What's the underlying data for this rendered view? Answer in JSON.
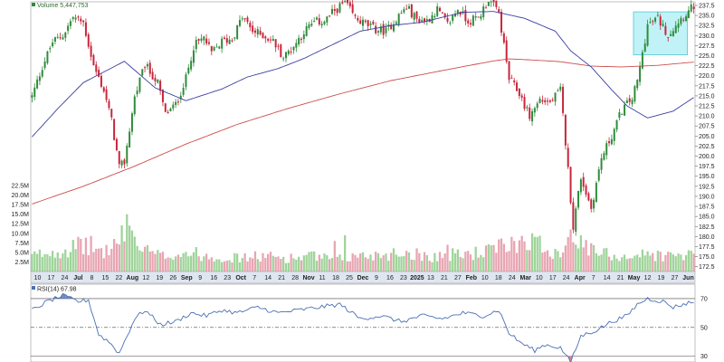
{
  "chart_data": [
    {
      "type": "candlestick",
      "header": {
        "volume_label": "Volume 5,447,753"
      },
      "y_axis": {
        "side": "right",
        "ticks": [
          "237.5",
          "235.0",
          "232.5",
          "230.0",
          "227.5",
          "225.0",
          "222.5",
          "220.0",
          "217.5",
          "215.0",
          "212.5",
          "210.0",
          "207.5",
          "205.0",
          "202.5",
          "200.0",
          "197.5",
          "195.0",
          "192.5",
          "190.0",
          "187.5",
          "185.0",
          "182.5",
          "180.0",
          "177.5",
          "175.0",
          "172.5"
        ],
        "range": [
          171.3,
          238.4
        ]
      },
      "volume_axis": {
        "ticks": [
          "22.5M",
          "20.0M",
          "17.5M",
          "15.0M",
          "12.5M",
          "10.0M",
          "7.5M",
          "5.0M",
          "2.5M"
        ],
        "range": [
          0,
          22.5
        ]
      },
      "x_axis": {
        "labels": [
          {
            "text": "10",
            "bold": false
          },
          {
            "text": "17",
            "bold": false
          },
          {
            "text": "24",
            "bold": false
          },
          {
            "text": "Jul",
            "bold": true
          },
          {
            "text": "8",
            "bold": false
          },
          {
            "text": "15",
            "bold": false
          },
          {
            "text": "22",
            "bold": false
          },
          {
            "text": "Aug",
            "bold": true
          },
          {
            "text": "12",
            "bold": false
          },
          {
            "text": "19",
            "bold": false
          },
          {
            "text": "26",
            "bold": false
          },
          {
            "text": "Sep",
            "bold": true
          },
          {
            "text": "9",
            "bold": false
          },
          {
            "text": "16",
            "bold": false
          },
          {
            "text": "23",
            "bold": false
          },
          {
            "text": "Oct",
            "bold": true
          },
          {
            "text": "7",
            "bold": false
          },
          {
            "text": "14",
            "bold": false
          },
          {
            "text": "21",
            "bold": false
          },
          {
            "text": "28",
            "bold": false
          },
          {
            "text": "Nov",
            "bold": true
          },
          {
            "text": "11",
            "bold": false
          },
          {
            "text": "18",
            "bold": false
          },
          {
            "text": "25",
            "bold": false
          },
          {
            "text": "Dec",
            "bold": true
          },
          {
            "text": "9",
            "bold": false
          },
          {
            "text": "16",
            "bold": false
          },
          {
            "text": "23",
            "bold": false
          },
          {
            "text": "2025",
            "bold": true
          },
          {
            "text": "13",
            "bold": false
          },
          {
            "text": "21",
            "bold": false
          },
          {
            "text": "27",
            "bold": false
          },
          {
            "text": "Feb",
            "bold": true
          },
          {
            "text": "10",
            "bold": false
          },
          {
            "text": "18",
            "bold": false
          },
          {
            "text": "24",
            "bold": false
          },
          {
            "text": "Mar",
            "bold": true
          },
          {
            "text": "10",
            "bold": false
          },
          {
            "text": "17",
            "bold": false
          },
          {
            "text": "24",
            "bold": false
          },
          {
            "text": "Apr",
            "bold": true
          },
          {
            "text": "7",
            "bold": false
          },
          {
            "text": "14",
            "bold": false
          },
          {
            "text": "21",
            "bold": false
          },
          {
            "text": "May",
            "bold": true
          },
          {
            "text": "12",
            "bold": false
          },
          {
            "text": "19",
            "bold": false
          },
          {
            "text": "27",
            "bold": false
          },
          {
            "text": "Jun",
            "bold": true
          }
        ]
      },
      "price_anchors": [
        [
          0,
          214.8
        ],
        [
          4,
          222.3
        ],
        [
          8,
          228.4
        ],
        [
          12,
          230.1
        ],
        [
          16,
          234.6
        ],
        [
          20,
          233.2
        ],
        [
          24,
          222.4
        ],
        [
          28,
          216.4
        ],
        [
          31,
          208.8
        ],
        [
          34,
          197.1
        ],
        [
          36,
          198.5
        ],
        [
          40,
          214.7
        ],
        [
          44,
          222.7
        ],
        [
          49,
          218.2
        ],
        [
          52,
          210.4
        ],
        [
          56,
          212.8
        ],
        [
          60,
          219.3
        ],
        [
          63,
          227.4
        ],
        [
          67,
          229.4
        ],
        [
          70,
          225.6
        ],
        [
          74,
          228.5
        ],
        [
          78,
          229.2
        ],
        [
          82,
          234.6
        ],
        [
          86,
          231.1
        ],
        [
          90,
          230.1
        ],
        [
          94,
          228.6
        ],
        [
          98,
          224.6
        ],
        [
          102,
          227.4
        ],
        [
          106,
          231.0
        ],
        [
          110,
          233.3
        ],
        [
          114,
          233.6
        ],
        [
          118,
          236.2
        ],
        [
          122,
          238.2
        ],
        [
          126,
          234.3
        ],
        [
          130,
          232.8
        ],
        [
          134,
          231.5
        ],
        [
          138,
          231.1
        ],
        [
          142,
          234.2
        ],
        [
          146,
          237.1
        ],
        [
          150,
          234.0
        ],
        [
          154,
          233.7
        ],
        [
          158,
          236.5
        ],
        [
          162,
          232.7
        ],
        [
          166,
          236.6
        ],
        [
          170,
          233.6
        ],
        [
          174,
          234.4
        ],
        [
          178,
          239.0
        ],
        [
          182,
          235.6
        ],
        [
          186,
          219.2
        ],
        [
          190,
          215.6
        ],
        [
          194,
          209.9
        ],
        [
          198,
          214.1
        ],
        [
          202,
          213.3
        ],
        [
          206,
          216.4
        ],
        [
          208,
          203.5
        ],
        [
          211,
          182.5
        ],
        [
          214,
          194.8
        ],
        [
          218,
          187.0
        ],
        [
          222,
          199.5
        ],
        [
          226,
          205.1
        ],
        [
          230,
          211.5
        ],
        [
          234,
          214.4
        ],
        [
          236,
          218.6
        ],
        [
          240,
          232.6
        ],
        [
          244,
          234.3
        ],
        [
          248,
          230.1
        ],
        [
          252,
          233.7
        ],
        [
          256,
          236.0
        ],
        [
          258,
          237.4
        ]
      ],
      "ma_short": {
        "color": "#3b3fa0",
        "points": [
          [
            0,
            204.8
          ],
          [
            10,
            211.8
          ],
          [
            20,
            218.3
          ],
          [
            36,
            223.6
          ],
          [
            48,
            217.0
          ],
          [
            60,
            213.8
          ],
          [
            74,
            216.7
          ],
          [
            84,
            219.7
          ],
          [
            96,
            221.8
          ],
          [
            106,
            224.3
          ],
          [
            118,
            228.0
          ],
          [
            128,
            231.1
          ],
          [
            140,
            232.5
          ],
          [
            152,
            233.3
          ],
          [
            168,
            235.8
          ],
          [
            180,
            236.0
          ],
          [
            192,
            234.3
          ],
          [
            204,
            231.1
          ],
          [
            210,
            226.2
          ],
          [
            218,
            222.2
          ],
          [
            226,
            216.5
          ],
          [
            232,
            212.5
          ],
          [
            240,
            209.5
          ],
          [
            250,
            211.2
          ],
          [
            258,
            214.6
          ]
        ]
      },
      "ma_long": {
        "color": "#cc4b4b",
        "points": [
          [
            0,
            188.1
          ],
          [
            20,
            192.5
          ],
          [
            40,
            197.5
          ],
          [
            60,
            203.0
          ],
          [
            80,
            207.9
          ],
          [
            100,
            211.9
          ],
          [
            120,
            215.5
          ],
          [
            140,
            218.8
          ],
          [
            160,
            221.3
          ],
          [
            180,
            223.7
          ],
          [
            186,
            224.2
          ],
          [
            196,
            223.9
          ],
          [
            206,
            223.5
          ],
          [
            218,
            222.4
          ],
          [
            230,
            222.2
          ],
          [
            244,
            222.6
          ],
          [
            258,
            223.4
          ]
        ]
      },
      "volume_anchors": [
        [
          0,
          4
        ],
        [
          6,
          5
        ],
        [
          14,
          6
        ],
        [
          22,
          7
        ],
        [
          28,
          5
        ],
        [
          34,
          8
        ],
        [
          38,
          11
        ],
        [
          42,
          6
        ],
        [
          50,
          4
        ],
        [
          60,
          5
        ],
        [
          70,
          4
        ],
        [
          80,
          3.5
        ],
        [
          90,
          4
        ],
        [
          100,
          3.5
        ],
        [
          110,
          4
        ],
        [
          118,
          3
        ],
        [
          126,
          4
        ],
        [
          136,
          4.5
        ],
        [
          146,
          5
        ],
        [
          156,
          4
        ],
        [
          166,
          4.5
        ],
        [
          176,
          5
        ],
        [
          186,
          7
        ],
        [
          194,
          9
        ],
        [
          200,
          6
        ],
        [
          206,
          5
        ],
        [
          210,
          10
        ],
        [
          214,
          7
        ],
        [
          220,
          5
        ],
        [
          230,
          4
        ],
        [
          240,
          4.5
        ],
        [
          250,
          4
        ],
        [
          258,
          4.5
        ]
      ],
      "volume_spikes": [
        [
          37,
          15
        ],
        [
          38,
          12
        ],
        [
          118,
          8
        ],
        [
          122,
          9.5
        ],
        [
          195,
          10
        ],
        [
          209,
          9
        ],
        [
          210,
          11
        ],
        [
          162,
          7
        ]
      ],
      "highlight_box": {
        "color": "#8ee8f0",
        "from": 235,
        "to": 256
      },
      "up_color": "#2e8b3a",
      "down_color": "#c8253a",
      "vol_up_color": "#9fd49a",
      "vol_down_color": "#e8a5b2"
    },
    {
      "type": "line",
      "legend": "RSI(14) 67.98",
      "y_axis": {
        "ticks": [
          "70",
          "50",
          "30"
        ],
        "range": [
          26,
          80
        ]
      },
      "reference_lines": [
        70,
        50,
        30
      ],
      "line_color": "#4a6fb3",
      "overbought_fill": "#4a6fb3",
      "oversold_fill": "#e86a8a",
      "anchors": [
        [
          0,
          62
        ],
        [
          6,
          68
        ],
        [
          12,
          72
        ],
        [
          18,
          68
        ],
        [
          22,
          69
        ],
        [
          26,
          45
        ],
        [
          30,
          40
        ],
        [
          34,
          32
        ],
        [
          36,
          40
        ],
        [
          40,
          56
        ],
        [
          44,
          62
        ],
        [
          50,
          52
        ],
        [
          56,
          54
        ],
        [
          62,
          60
        ],
        [
          68,
          58
        ],
        [
          74,
          62
        ],
        [
          80,
          60
        ],
        [
          88,
          64
        ],
        [
          96,
          60
        ],
        [
          104,
          62
        ],
        [
          112,
          64
        ],
        [
          120,
          66
        ],
        [
          128,
          56
        ],
        [
          136,
          58
        ],
        [
          144,
          54
        ],
        [
          152,
          58
        ],
        [
          160,
          56
        ],
        [
          168,
          60
        ],
        [
          176,
          58
        ],
        [
          182,
          62
        ],
        [
          186,
          46
        ],
        [
          190,
          40
        ],
        [
          196,
          34
        ],
        [
          200,
          38
        ],
        [
          206,
          36
        ],
        [
          210,
          26
        ],
        [
          214,
          44
        ],
        [
          220,
          48
        ],
        [
          226,
          54
        ],
        [
          232,
          58
        ],
        [
          236,
          66
        ],
        [
          240,
          70
        ],
        [
          246,
          68
        ],
        [
          250,
          64
        ],
        [
          258,
          68
        ]
      ]
    }
  ]
}
